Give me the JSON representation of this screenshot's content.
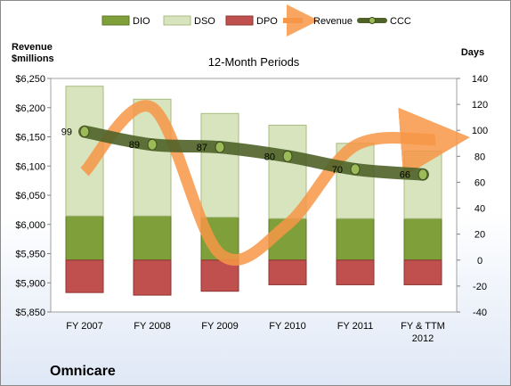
{
  "chart_data": {
    "type": "bar",
    "title": "12-Month Periods",
    "company": "Omnicare",
    "left_axis_label": "Revenue\n$millions",
    "right_axis_label": "Days",
    "categories": [
      "FY 2007",
      "FY 2008",
      "FY 2009",
      "FY 2010",
      "FY 2011",
      "FY & TTM\n2012"
    ],
    "left_axis": {
      "min": 5850,
      "max": 6250,
      "step": 50,
      "ticks": [
        "$5,850",
        "$5,900",
        "$5,950",
        "$6,000",
        "$6,050",
        "$6,100",
        "$6,150",
        "$6,200",
        "$6,250"
      ]
    },
    "right_axis": {
      "min": -40,
      "max": 140,
      "step": 20,
      "ticks": [
        "-40",
        "-20",
        "0",
        "20",
        "40",
        "60",
        "80",
        "100",
        "120",
        "140"
      ]
    },
    "legend_position": "top",
    "grid": false,
    "series": [
      {
        "name": "DIO",
        "axis": "right",
        "kind": "stacked-bar",
        "color": "#7f9f3a",
        "values": [
          34,
          34,
          33,
          32,
          32,
          32
        ]
      },
      {
        "name": "DSO",
        "axis": "right",
        "kind": "stacked-bar",
        "color": "#d7e4bd",
        "values": [
          100,
          90,
          80,
          72,
          58,
          52
        ]
      },
      {
        "name": "DPO",
        "axis": "right",
        "kind": "negative-bar",
        "color": "#c0504d",
        "values": [
          -25,
          -27,
          -24,
          -19,
          -19,
          -19
        ]
      },
      {
        "name": "Revenue",
        "axis": "left",
        "kind": "arrow-line",
        "color": "#f79646",
        "values": [
          6090,
          6200,
          5950,
          6000,
          6135,
          6145
        ]
      },
      {
        "name": "CCC",
        "axis": "right",
        "kind": "line",
        "color": "#4f6228",
        "values": [
          99,
          89,
          87,
          80,
          70,
          66
        ]
      }
    ]
  }
}
